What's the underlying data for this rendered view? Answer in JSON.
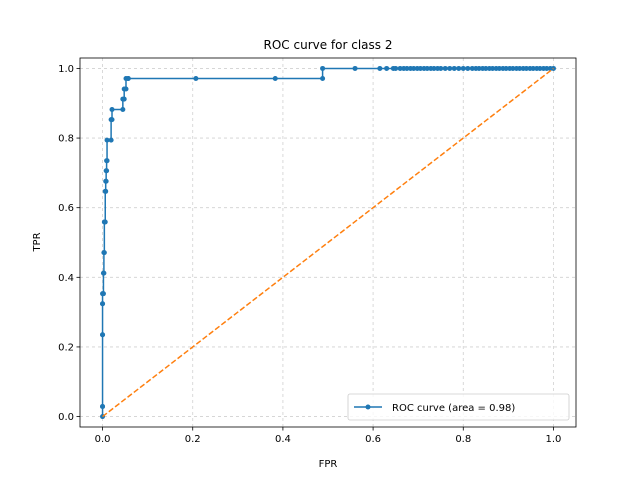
{
  "chart_data": {
    "type": "line",
    "title": "ROC curve for class 2",
    "xlabel": "FPR",
    "ylabel": "TPR",
    "xlim": [
      -0.05,
      1.05
    ],
    "ylim": [
      -0.03,
      1.03
    ],
    "xticks": [
      0.0,
      0.2,
      0.4,
      0.6,
      0.8,
      1.0
    ],
    "yticks": [
      0.0,
      0.2,
      0.4,
      0.6,
      0.8,
      1.0
    ],
    "xtick_labels": [
      "0.0",
      "0.2",
      "0.4",
      "0.6",
      "0.8",
      "1.0"
    ],
    "ytick_labels": [
      "0.0",
      "0.2",
      "0.4",
      "0.6",
      "0.8",
      "1.0"
    ],
    "grid": true,
    "legend_position": "lower-right",
    "series": [
      {
        "name": "ROC curve (area = 0.98)",
        "style": "solid-with-markers",
        "color": "#1f77b4",
        "x": [
          0.0,
          0.0,
          0.0,
          0.0,
          0.0,
          0.0,
          0.0,
          0.0,
          0.002,
          0.002,
          0.003,
          0.003,
          0.004,
          0.004,
          0.006,
          0.006,
          0.007,
          0.007,
          0.008,
          0.008,
          0.009,
          0.009,
          0.01,
          0.01,
          0.019,
          0.019,
          0.021,
          0.021,
          0.045,
          0.045,
          0.048,
          0.048,
          0.052,
          0.052,
          0.057,
          0.057,
          0.207,
          0.383,
          0.488,
          0.488,
          0.56,
          0.615,
          0.63,
          0.645,
          0.65,
          0.66,
          0.668,
          0.675,
          0.683,
          0.69,
          0.698,
          0.705,
          0.713,
          0.72,
          0.728,
          0.735,
          0.743,
          0.75,
          0.76,
          0.77,
          0.78,
          0.79,
          0.8,
          0.81,
          0.82,
          0.828,
          0.835,
          0.843,
          0.85,
          0.858,
          0.865,
          0.873,
          0.88,
          0.888,
          0.895,
          0.903,
          0.91,
          0.918,
          0.925,
          0.933,
          0.94,
          0.948,
          0.955,
          0.963,
          0.97,
          0.978,
          0.985,
          0.993,
          1.0
        ],
        "y": [
          0.0,
          0.029,
          0.029,
          0.235,
          0.235,
          0.324,
          0.324,
          0.353,
          0.353,
          0.412,
          0.412,
          0.471,
          0.471,
          0.559,
          0.559,
          0.647,
          0.647,
          0.676,
          0.676,
          0.706,
          0.706,
          0.735,
          0.735,
          0.794,
          0.794,
          0.853,
          0.853,
          0.882,
          0.882,
          0.912,
          0.912,
          0.941,
          0.941,
          0.971,
          0.971,
          0.971,
          0.971,
          0.971,
          0.971,
          1.0,
          1.0,
          1.0,
          1.0,
          1.0,
          1.0,
          1.0,
          1.0,
          1.0,
          1.0,
          1.0,
          1.0,
          1.0,
          1.0,
          1.0,
          1.0,
          1.0,
          1.0,
          1.0,
          1.0,
          1.0,
          1.0,
          1.0,
          1.0,
          1.0,
          1.0,
          1.0,
          1.0,
          1.0,
          1.0,
          1.0,
          1.0,
          1.0,
          1.0,
          1.0,
          1.0,
          1.0,
          1.0,
          1.0,
          1.0,
          1.0,
          1.0,
          1.0,
          1.0,
          1.0,
          1.0,
          1.0,
          1.0,
          1.0,
          1.0
        ]
      },
      {
        "style": "dashed",
        "color": "#ff7f0e",
        "x": [
          0.0,
          1.0
        ],
        "y": [
          0.0,
          1.0
        ]
      }
    ]
  }
}
